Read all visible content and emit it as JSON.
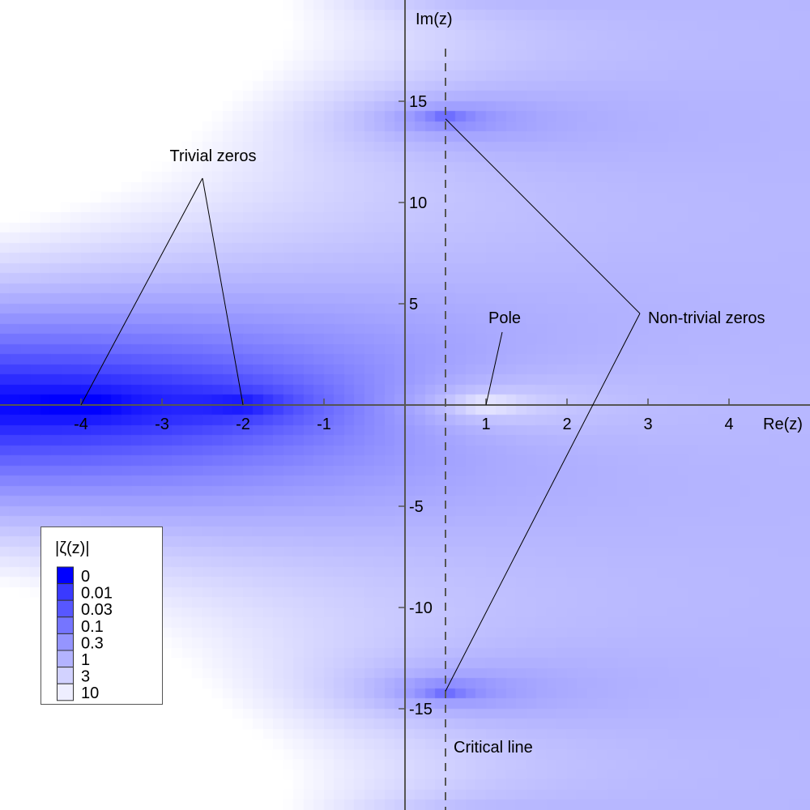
{
  "chart_data": {
    "type": "heatmap",
    "function": "|ζ(z)|",
    "xlabel": "Re(z)",
    "ylabel": "Im(z)",
    "xlim": [
      -5,
      5
    ],
    "ylim": [
      -20,
      20
    ],
    "color_scale": "log",
    "xticks": [
      {
        "value": -4,
        "label": "-4"
      },
      {
        "value": -3,
        "label": "-3"
      },
      {
        "value": -2,
        "label": "-2"
      },
      {
        "value": -1,
        "label": "-1"
      },
      {
        "value": 1,
        "label": "1"
      },
      {
        "value": 2,
        "label": "2"
      },
      {
        "value": 3,
        "label": "3"
      },
      {
        "value": 4,
        "label": "4"
      }
    ],
    "yticks": [
      {
        "value": 15,
        "label": "15"
      },
      {
        "value": 10,
        "label": "10"
      },
      {
        "value": 5,
        "label": "5"
      },
      {
        "value": -5,
        "label": "-5"
      },
      {
        "value": -10,
        "label": "-10"
      },
      {
        "value": -15,
        "label": "-15"
      }
    ],
    "legend": {
      "title": "|ζ(z)|",
      "placement": "bottom-left",
      "levels": [
        {
          "value": 0,
          "label": "0",
          "color": "#0000ff"
        },
        {
          "value": 0.01,
          "label": "0.01",
          "color": "#3a3aff"
        },
        {
          "value": 0.03,
          "label": "0.03",
          "color": "#5757ff"
        },
        {
          "value": 0.1,
          "label": "0.1",
          "color": "#7575ff"
        },
        {
          "value": 0.3,
          "label": "0.3",
          "color": "#9595ff"
        },
        {
          "value": 1,
          "label": "1",
          "color": "#b3b3ff"
        },
        {
          "value": 3,
          "label": "3",
          "color": "#d2d2ff"
        },
        {
          "value": 10,
          "label": "10",
          "color": "#eeeeff"
        }
      ]
    },
    "critical_line": {
      "re": 0.5,
      "label": "Critical line",
      "style": "dashed"
    },
    "annotations": [
      {
        "label": "Trivial zeros",
        "label_at": [
          -2.5,
          12.3
        ],
        "points": [
          [
            -4,
            0
          ],
          [
            -2,
            0
          ]
        ]
      },
      {
        "label": "Non-trivial zeros",
        "label_at": [
          2.9,
          4.5
        ],
        "points": [
          [
            0.5,
            14.13
          ],
          [
            0.5,
            -14.13
          ]
        ]
      },
      {
        "label": "Pole",
        "label_at": [
          1.2,
          3.6
        ],
        "points": [
          [
            1,
            0
          ]
        ]
      }
    ],
    "grid": false
  }
}
